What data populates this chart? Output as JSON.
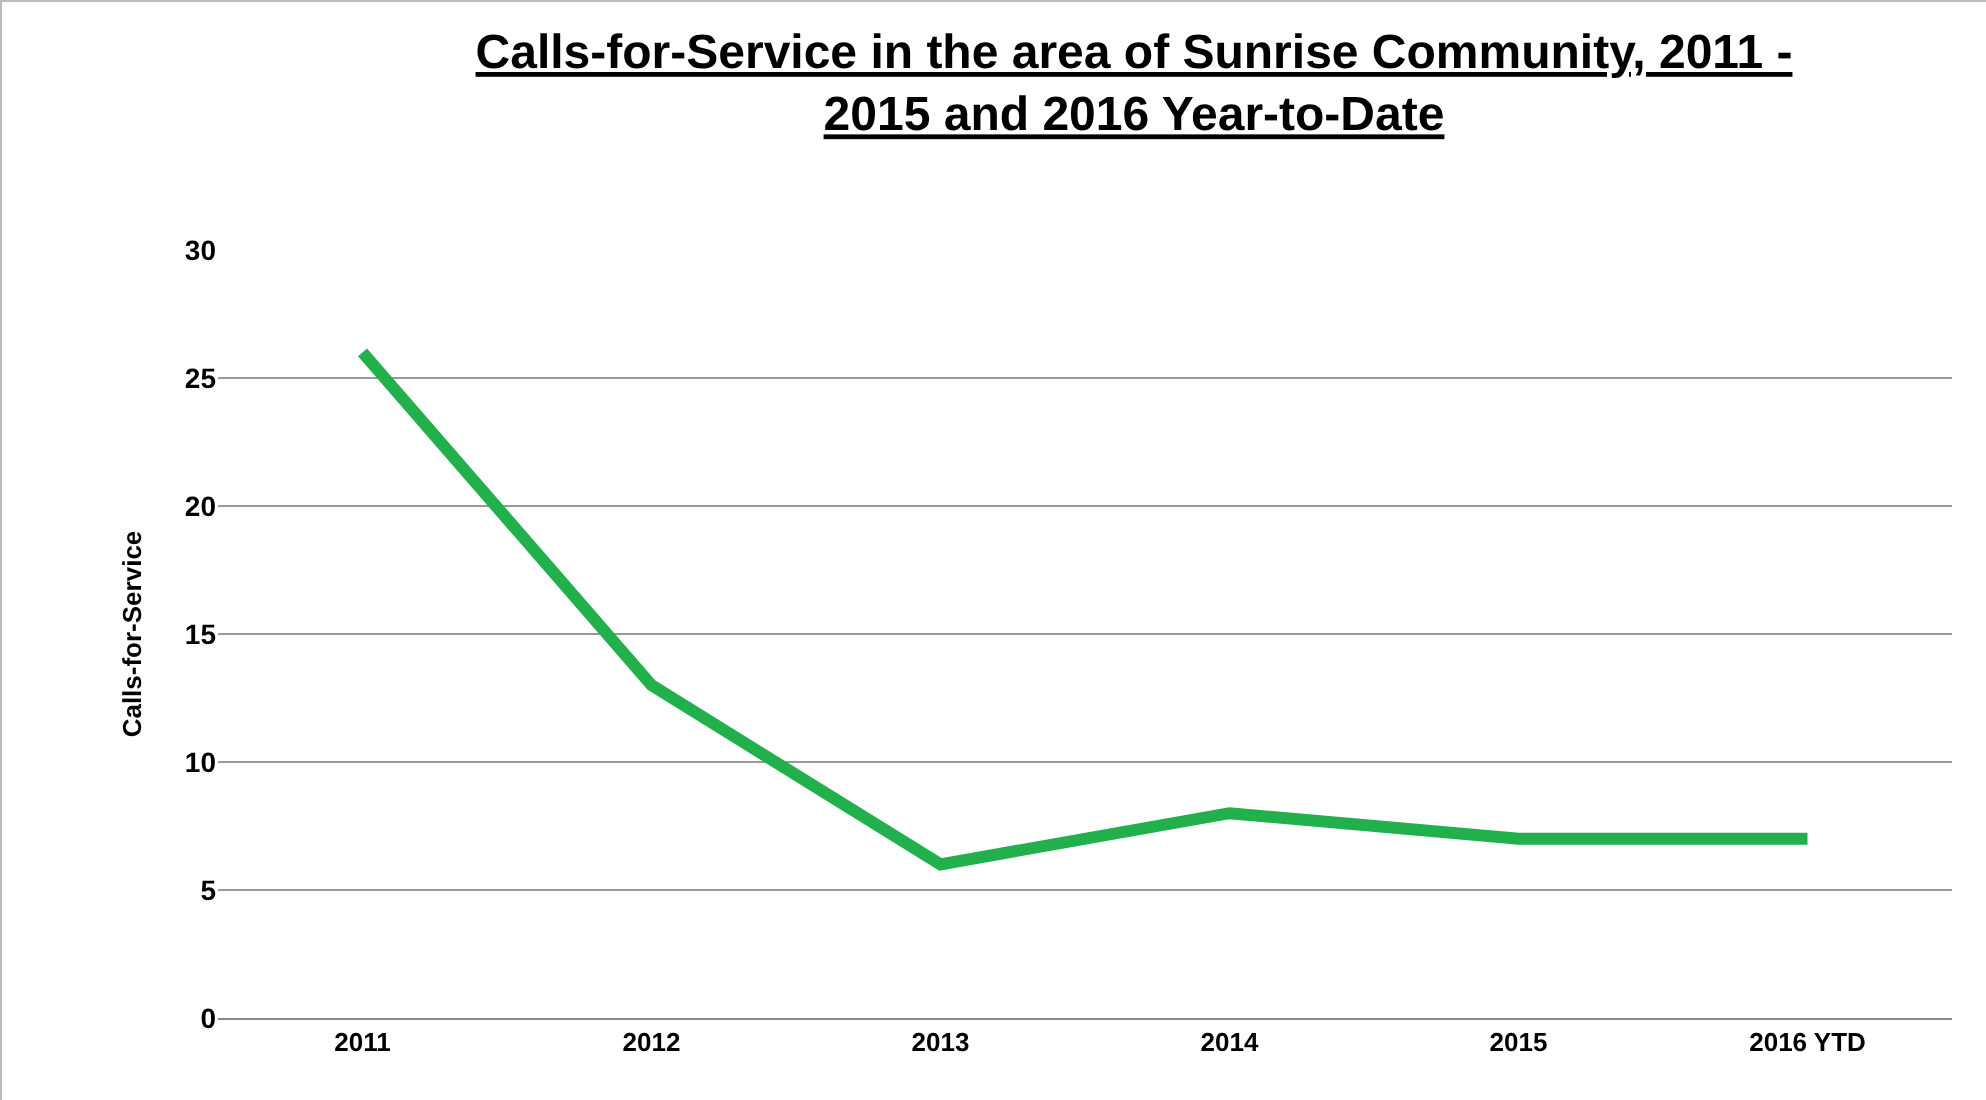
{
  "chart_data": {
    "type": "line",
    "title": "Calls-for-Service in the area of Sunrise Community, 2011 - 2015 and 2016 Year-to-Date",
    "ylabel": "Calls-for-Service",
    "categories": [
      "2011",
      "2012",
      "2013",
      "2014",
      "2015",
      "2016 YTD"
    ],
    "series": [
      {
        "color": "#21b04b",
        "values": [
          26,
          13,
          6,
          8,
          7,
          7
        ]
      }
    ],
    "ylim": [
      0,
      30
    ],
    "yticks": [
      0,
      5,
      10,
      15,
      20,
      25,
      30
    ],
    "grid": "y",
    "marker": "none",
    "line_style": "solid"
  }
}
